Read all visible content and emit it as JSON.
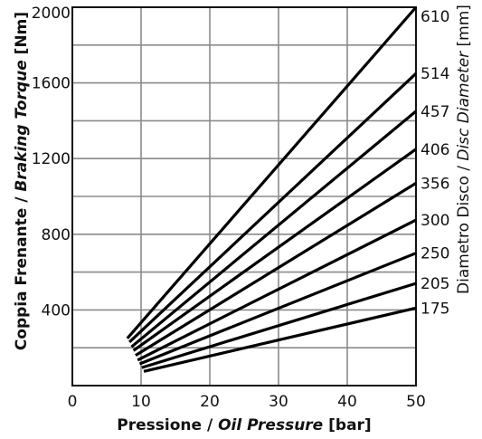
{
  "chart_data": {
    "type": "line",
    "xlabel": {
      "main": "Pressione / ",
      "italic": "Oil Pressure",
      "unit": " [bar]"
    },
    "ylabel": {
      "main": "Coppia Frenante / ",
      "italic": "Braking Torque",
      "unit": " [Nm]"
    },
    "right_label": {
      "main": "Diametro Disco / ",
      "italic": "Disc Diameter",
      "unit": " [mm]"
    },
    "xlim": [
      0,
      50
    ],
    "ylim": [
      0,
      2000
    ],
    "x_ticks": [
      0,
      10,
      20,
      30,
      40,
      50
    ],
    "y_ticks": [
      400,
      800,
      1200,
      1600,
      2000
    ],
    "grid": true,
    "series": [
      {
        "name": "610",
        "x": [
          8.0,
          50
        ],
        "y": [
          250,
          2000
        ]
      },
      {
        "name": "514",
        "x": [
          8.3,
          50
        ],
        "y": [
          230,
          1650
        ]
      },
      {
        "name": "457",
        "x": [
          8.6,
          50
        ],
        "y": [
          205,
          1450
        ]
      },
      {
        "name": "406",
        "x": [
          8.9,
          50
        ],
        "y": [
          185,
          1250
        ]
      },
      {
        "name": "356",
        "x": [
          9.2,
          50
        ],
        "y": [
          160,
          1070
        ]
      },
      {
        "name": "300",
        "x": [
          9.5,
          50
        ],
        "y": [
          135,
          875
        ]
      },
      {
        "name": "250",
        "x": [
          9.8,
          50
        ],
        "y": [
          115,
          700
        ]
      },
      {
        "name": "205",
        "x": [
          10.1,
          50
        ],
        "y": [
          95,
          540
        ]
      },
      {
        "name": "175",
        "x": [
          10.4,
          50
        ],
        "y": [
          75,
          410
        ]
      }
    ]
  }
}
